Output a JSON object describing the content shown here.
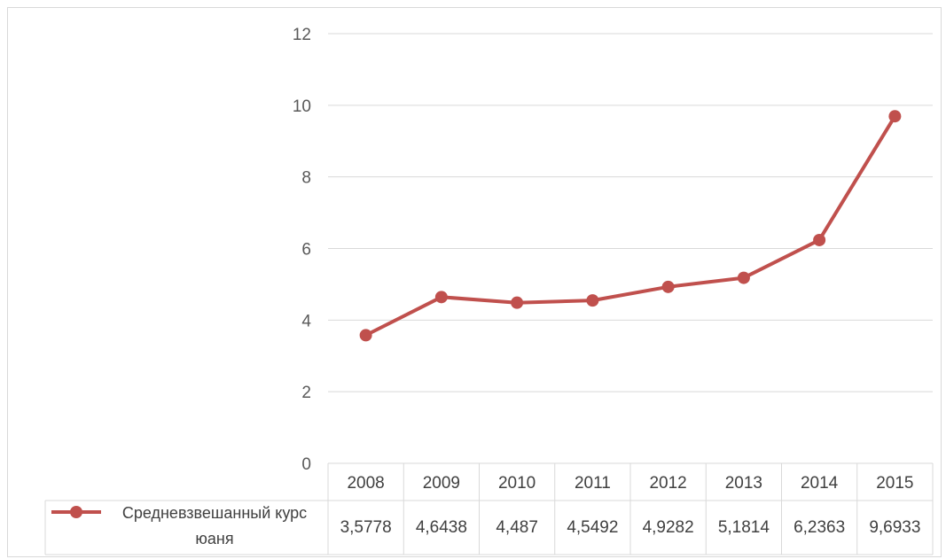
{
  "chart_data": {
    "type": "line",
    "title": "",
    "xlabel": "",
    "ylabel": "",
    "categories": [
      "2008",
      "2009",
      "2010",
      "2011",
      "2012",
      "2013",
      "2014",
      "2015"
    ],
    "series": [
      {
        "name": "Средневзвешанный курс юаня",
        "values": [
          3.5778,
          4.6438,
          4.487,
          4.5492,
          4.9282,
          5.1814,
          6.2363,
          9.6933
        ],
        "value_labels": [
          "3,5778",
          "4,6438",
          "4,487",
          "4,5492",
          "4,9282",
          "5,1814",
          "6,2363",
          "9,6933"
        ],
        "color": "#c0504d"
      }
    ],
    "ylim": [
      0,
      12
    ],
    "yticks": [
      0,
      2,
      4,
      6,
      8,
      10,
      12
    ],
    "ytick_labels": [
      "0",
      "2",
      "4",
      "6",
      "8",
      "10",
      "12"
    ],
    "grid": true,
    "legend_placement": "data-table",
    "data_table": true
  },
  "legend": {
    "line1": "Средневзвешанный курс",
    "line2": "юаня"
  },
  "colors": {
    "series": "#c0504d",
    "grid": "#d9d9d9",
    "table_border": "#d9d9d9",
    "text": "#404040",
    "axis_text": "#595959"
  }
}
